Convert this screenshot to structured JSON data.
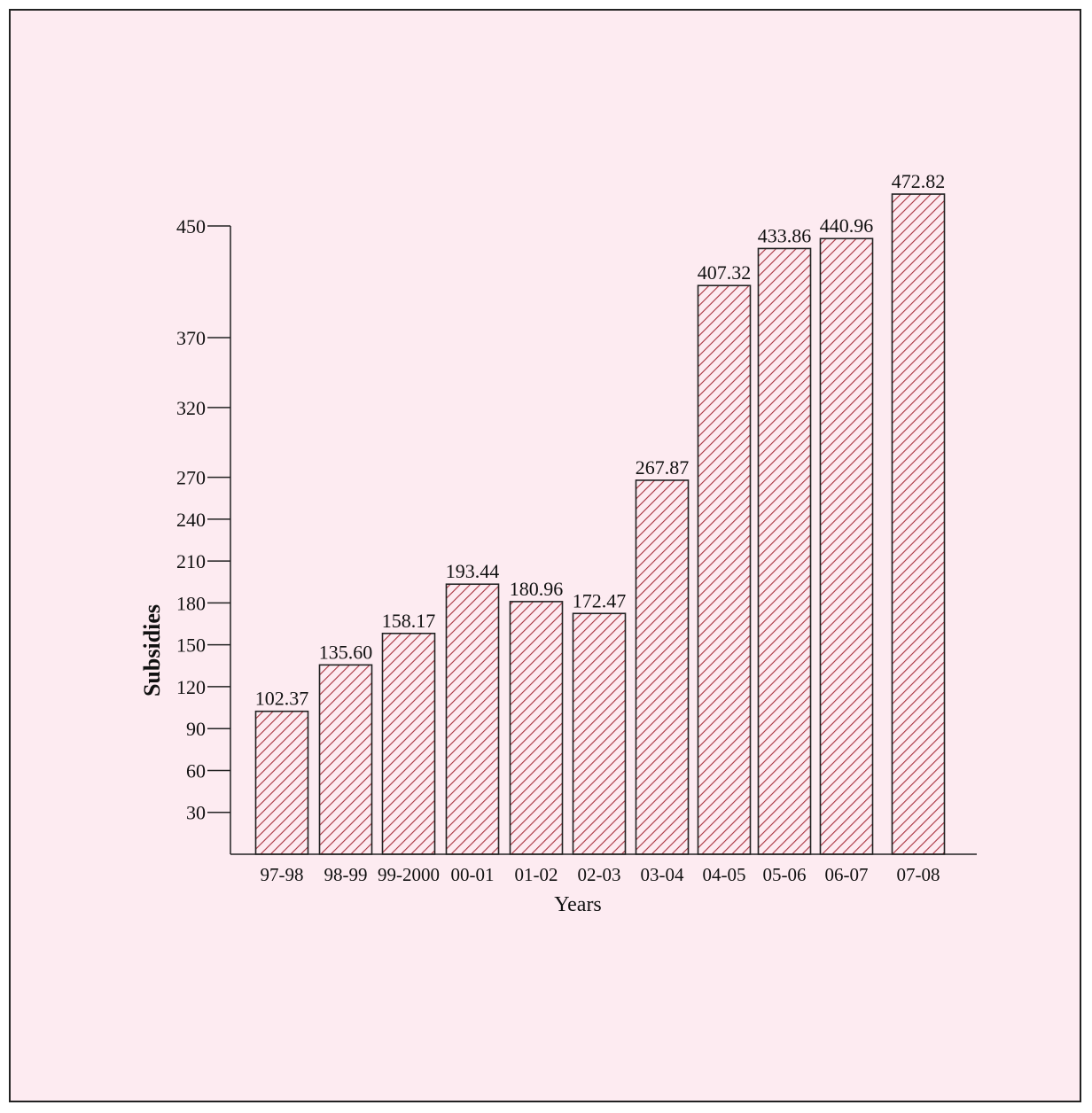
{
  "chart_data": {
    "type": "bar",
    "title": "",
    "xlabel": "Years",
    "ylabel": "Subsidies",
    "categories": [
      "97-98",
      "98-99",
      "99-2000",
      "00-01",
      "01-02",
      "02-03",
      "03-04",
      "04-05",
      "05-06",
      "06-07",
      "07-08"
    ],
    "values": [
      102.37,
      135.6,
      158.17,
      193.44,
      180.96,
      172.47,
      267.87,
      407.32,
      433.86,
      440.96,
      472.82
    ],
    "value_labels": [
      "102.37",
      "135.60",
      "158.17",
      "193.44",
      "180.96",
      "172.47",
      "267.87",
      "407.32",
      "433.86",
      "440.96",
      "472.82"
    ],
    "y_ticks": [
      30,
      60,
      90,
      120,
      150,
      180,
      210,
      240,
      270,
      320,
      370,
      450
    ],
    "ylim": [
      0,
      450
    ],
    "grid": false,
    "legend": "none",
    "bar_fill": "hatched",
    "colors": {
      "background": "#fdebf1",
      "bar_edge": "#222222",
      "hatch": "#a8323e",
      "axis": "#222222"
    }
  }
}
